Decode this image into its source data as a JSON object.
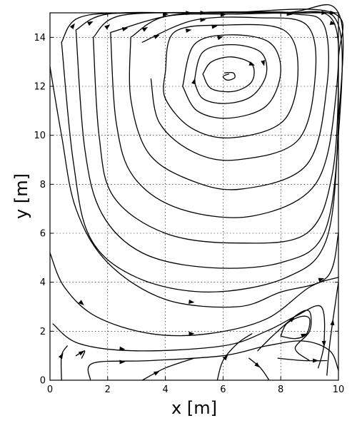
{
  "chart_data": {
    "type": "streamplot",
    "xlabel": "x [m]",
    "ylabel": "y [m]",
    "xlim": [
      0,
      10
    ],
    "ylim": [
      0,
      15
    ],
    "xticks": [
      0,
      2,
      4,
      6,
      8,
      10
    ],
    "yticks": [
      0,
      2,
      4,
      6,
      8,
      10,
      12,
      14
    ],
    "grid": true,
    "vortex_center": [
      6.2,
      12.4
    ],
    "streamlines": [
      {
        "points": [
          [
            6.05,
            12.55
          ],
          [
            6.35,
            12.55
          ],
          [
            6.4,
            12.35
          ],
          [
            6.15,
            12.25
          ],
          [
            6.0,
            12.4
          ],
          [
            6.2,
            12.5
          ]
        ],
        "arrow_at": []
      },
      {
        "points": [
          [
            5.3,
            12.5
          ],
          [
            5.6,
            13.0
          ],
          [
            6.3,
            13.2
          ],
          [
            7.0,
            12.9
          ],
          [
            7.0,
            12.2
          ],
          [
            6.4,
            11.8
          ],
          [
            5.6,
            11.9
          ],
          [
            5.3,
            12.5
          ]
        ],
        "arrow_at": [
          7.0
        ]
      },
      {
        "points": [
          [
            5.0,
            12.2
          ],
          [
            5.3,
            13.4
          ],
          [
            6.3,
            13.7
          ],
          [
            7.3,
            13.4
          ],
          [
            7.5,
            12.5
          ],
          [
            7.0,
            11.6
          ],
          [
            6.1,
            11.3
          ],
          [
            5.3,
            11.5
          ],
          [
            5.0,
            12.2
          ]
        ],
        "arrow_at": [
          7.4,
          5.0
        ]
      },
      {
        "points": [
          [
            4.6,
            12.0
          ],
          [
            5.0,
            13.7
          ],
          [
            6.2,
            14.1
          ],
          [
            7.6,
            13.8
          ],
          [
            8.0,
            12.6
          ],
          [
            7.5,
            11.2
          ],
          [
            6.2,
            10.7
          ],
          [
            5.1,
            11.0
          ],
          [
            4.6,
            12.0
          ]
        ],
        "arrow_at": [
          5.9
        ]
      },
      {
        "points": [
          [
            4.0,
            12.6
          ],
          [
            4.3,
            14.2
          ],
          [
            6.0,
            14.5
          ],
          [
            8.1,
            14.3
          ],
          [
            8.6,
            12.7
          ],
          [
            8.1,
            10.6
          ],
          [
            6.3,
            9.9
          ],
          [
            4.9,
            10.3
          ],
          [
            4.0,
            11.5
          ],
          [
            4.0,
            12.6
          ]
        ],
        "arrow_at": [
          5.7,
          4.8
        ]
      },
      {
        "points": [
          [
            3.2,
            13.8
          ],
          [
            5.0,
            14.7
          ],
          [
            7.2,
            14.8
          ],
          [
            8.9,
            14.5
          ],
          [
            9.2,
            12.5
          ],
          [
            8.6,
            9.8
          ],
          [
            6.5,
            9.0
          ],
          [
            5.0,
            9.3
          ],
          [
            3.8,
            10.5
          ],
          [
            3.5,
            12.3
          ]
        ],
        "arrow_at": [
          5.3,
          3.7
        ]
      },
      {
        "points": [
          [
            2.8,
            14.0
          ],
          [
            4.0,
            14.85
          ],
          [
            6.5,
            14.95
          ],
          [
            8.5,
            14.95
          ],
          [
            9.5,
            14.5
          ],
          [
            9.6,
            12.0
          ],
          [
            8.9,
            8.8
          ],
          [
            6.6,
            7.8
          ],
          [
            4.8,
            8.2
          ],
          [
            3.4,
            9.3
          ],
          [
            2.8,
            11.5
          ],
          [
            2.8,
            14.0
          ]
        ],
        "arrow_at": [
          6.0,
          3.3
        ]
      },
      {
        "points": [
          [
            2.1,
            14.2
          ],
          [
            4.5,
            14.95
          ],
          [
            8.0,
            15.0
          ],
          [
            9.8,
            14.7
          ],
          [
            9.9,
            11.5
          ],
          [
            9.2,
            8.0
          ],
          [
            7.0,
            6.7
          ],
          [
            4.5,
            7.0
          ],
          [
            2.9,
            8.3
          ],
          [
            2.3,
            10.5
          ],
          [
            2.1,
            14.2
          ]
        ],
        "arrow_at": [
          8.3,
          2.6
        ]
      },
      {
        "points": [
          [
            1.5,
            14.0
          ],
          [
            2.5,
            14.9
          ],
          [
            6.0,
            15.0
          ],
          [
            9.8,
            15.0
          ],
          [
            10.0,
            13.0
          ],
          [
            9.8,
            8.5
          ],
          [
            8.9,
            6.0
          ],
          [
            6.5,
            5.6
          ],
          [
            4.0,
            6.0
          ],
          [
            2.2,
            7.5
          ],
          [
            1.7,
            10.0
          ],
          [
            1.5,
            14.0
          ]
        ],
        "arrow_at": [
          9.8,
          4.0,
          2.0
        ]
      },
      {
        "points": [
          [
            0.9,
            14.3
          ],
          [
            2.0,
            14.95
          ],
          [
            5.0,
            15.0
          ],
          [
            8.5,
            15.0
          ],
          [
            10.0,
            14.5
          ],
          [
            10.0,
            10.0
          ],
          [
            9.5,
            6.0
          ],
          [
            8.0,
            4.8
          ],
          [
            5.5,
            4.6
          ],
          [
            3.2,
            5.2
          ],
          [
            1.8,
            6.8
          ],
          [
            1.2,
            9.5
          ],
          [
            0.9,
            14.3
          ]
        ],
        "arrow_at": [
          9.8,
          4.8,
          1.4
        ]
      },
      {
        "points": [
          [
            0.4,
            13.8
          ],
          [
            1.0,
            14.8
          ],
          [
            3.0,
            15.0
          ],
          [
            8.0,
            15.0
          ],
          [
            10.0,
            15.0
          ],
          [
            10.0,
            10.5
          ],
          [
            9.6,
            5.8
          ],
          [
            8.2,
            4.2
          ],
          [
            5.5,
            3.6
          ],
          [
            3.0,
            4.2
          ],
          [
            1.4,
            5.8
          ],
          [
            0.8,
            9.0
          ],
          [
            0.4,
            13.8
          ]
        ],
        "arrow_at": [
          9.5,
          5.3,
          0.8
        ]
      },
      {
        "points": [
          [
            0.0,
            12.8
          ],
          [
            0.4,
            10.0
          ],
          [
            0.9,
            7.0
          ],
          [
            2.0,
            4.8
          ],
          [
            4.0,
            3.3
          ],
          [
            6.5,
            3.0
          ],
          [
            8.0,
            3.6
          ],
          [
            9.6,
            4.2
          ],
          [
            10.0,
            6.0
          ]
        ],
        "arrow_at": [
          4.9,
          9.4
        ]
      },
      {
        "points": [
          [
            0.0,
            5.2
          ],
          [
            0.5,
            3.8
          ],
          [
            1.6,
            2.6
          ],
          [
            3.5,
            1.9
          ],
          [
            5.5,
            1.9
          ],
          [
            7.5,
            2.5
          ],
          [
            9.0,
            3.8
          ],
          [
            10.0,
            4.2
          ]
        ],
        "arrow_at": [
          1.1,
          4.9
        ]
      },
      {
        "points": [
          [
            0.1,
            2.3
          ],
          [
            1.0,
            1.5
          ],
          [
            3.0,
            1.2
          ],
          [
            6.0,
            1.4
          ],
          [
            7.5,
            2.0
          ],
          [
            8.5,
            2.6
          ],
          [
            9.4,
            3.0
          ],
          [
            9.5,
            1.5
          ],
          [
            9.3,
            0.5
          ]
        ],
        "arrow_at": [
          2.5,
          9.5
        ]
      },
      {
        "points": [
          [
            1.4,
            0.0
          ],
          [
            1.5,
            0.7
          ],
          [
            3.5,
            0.8
          ],
          [
            6.0,
            1.0
          ],
          [
            7.5,
            1.4
          ],
          [
            8.8,
            1.6
          ],
          [
            9.7,
            1.2
          ],
          [
            10.0,
            0.4
          ]
        ],
        "arrow_at": [
          2.5
        ]
      },
      {
        "points": [
          [
            8.0,
            1.8
          ],
          [
            8.5,
            1.7
          ],
          [
            8.9,
            1.9
          ],
          [
            9.0,
            2.5
          ],
          [
            8.7,
            2.6
          ],
          [
            8.2,
            2.3
          ],
          [
            8.0,
            1.8
          ]
        ],
        "arrow_at": [
          8.8
        ]
      },
      {
        "points": [
          [
            7.2,
            1.2
          ],
          [
            7.8,
            1.9
          ],
          [
            8.6,
            2.7
          ],
          [
            9.0,
            2.8
          ],
          [
            9.0,
            2.0
          ],
          [
            8.5,
            1.3
          ],
          [
            9.0,
            0.8
          ]
        ],
        "arrow_at": [
          8.4
        ]
      },
      {
        "points": [
          [
            6.9,
            0.9
          ],
          [
            7.3,
            0.5
          ],
          [
            7.6,
            0.0
          ]
        ],
        "arrow_at": [
          7.2
        ]
      },
      {
        "points": [
          [
            5.8,
            0.0
          ],
          [
            6.0,
            0.8
          ],
          [
            6.5,
            1.5
          ],
          [
            7.0,
            1.9
          ]
        ],
        "arrow_at": [
          6.1
        ]
      },
      {
        "points": [
          [
            3.2,
            0.0
          ],
          [
            4.0,
            0.5
          ],
          [
            5.0,
            0.9
          ]
        ],
        "arrow_at": [
          3.7
        ]
      },
      {
        "points": [
          [
            0.9,
            1.0
          ],
          [
            1.2,
            1.2
          ],
          [
            1.1,
            0.9
          ]
        ],
        "arrow_at": [
          1.1
        ]
      },
      {
        "points": [
          [
            0.4,
            0.0
          ],
          [
            0.4,
            1.0
          ],
          [
            0.6,
            1.4
          ]
        ],
        "arrow_at": [
          0.4
        ]
      },
      {
        "points": [
          [
            7.9,
            0.9
          ],
          [
            8.8,
            0.8
          ],
          [
            9.6,
            0.8
          ]
        ],
        "arrow_at": [
          9.2
        ]
      },
      {
        "points": [
          [
            9.6,
            0.2
          ],
          [
            9.7,
            1.5
          ],
          [
            9.9,
            3.2
          ],
          [
            10.0,
            4.0
          ]
        ],
        "arrow_at": [
          9.8
        ]
      }
    ]
  }
}
